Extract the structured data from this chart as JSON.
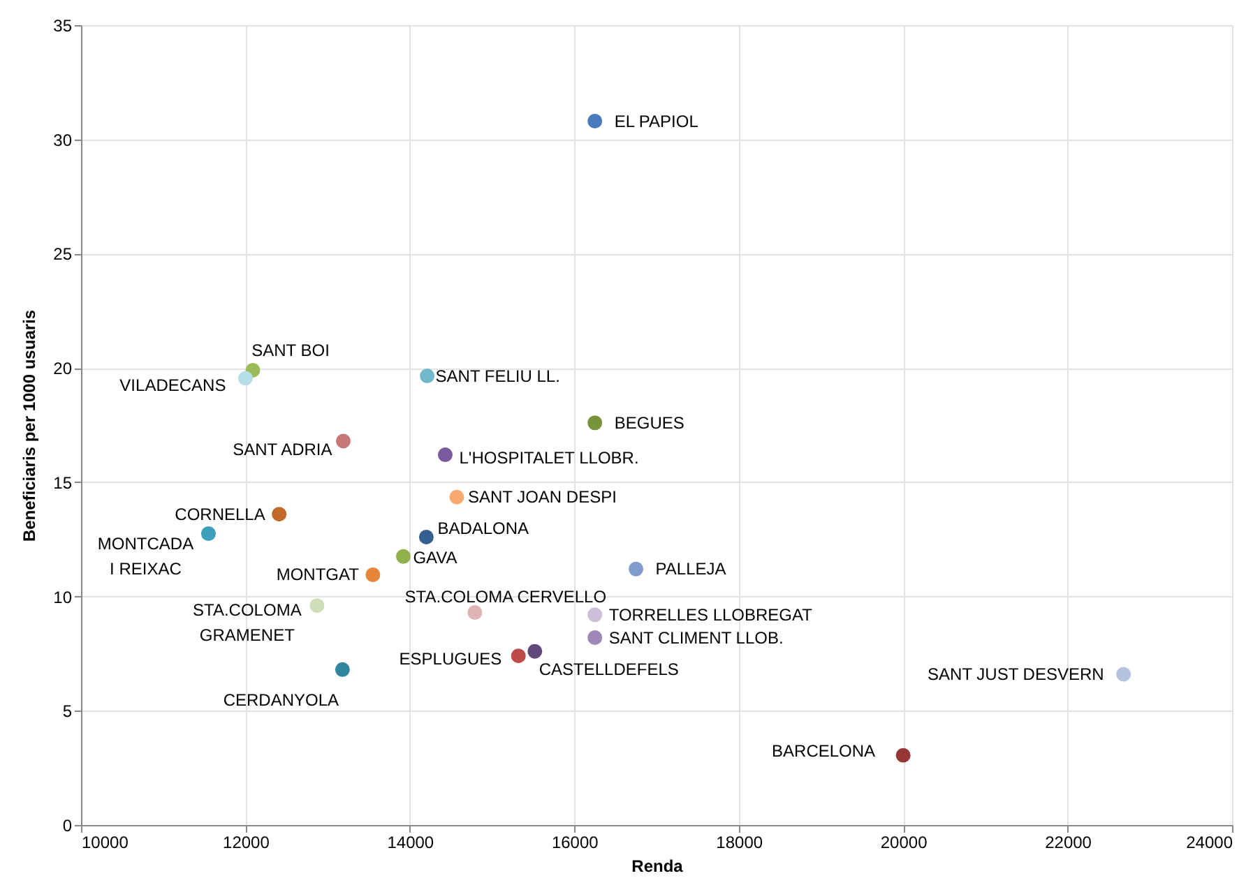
{
  "chart_data": {
    "type": "scatter",
    "xlabel": "Renda",
    "ylabel": "Beneficiaris per 1000 usuaris",
    "xlim": [
      10000,
      24000
    ],
    "xticks": [
      10000,
      12000,
      14000,
      16000,
      18000,
      20000,
      22000,
      24000
    ],
    "ylim": [
      0,
      35
    ],
    "yticks": [
      0,
      5,
      10,
      15,
      20,
      25,
      30,
      35
    ],
    "grid": true,
    "marker": "circle",
    "series": [
      {
        "name": "EL PAPIOL",
        "color": "#4a7bbd",
        "x": [
          16250
        ],
        "values": [
          30.8
        ]
      },
      {
        "name": "SANT BOI",
        "color": "#9bbb59",
        "x": [
          12090
        ],
        "values": [
          19.9
        ]
      },
      {
        "name": "VILADECANS",
        "color": "#b7dde8",
        "x": [
          12000
        ],
        "values": [
          19.55
        ]
      },
      {
        "name": "SANT FELIU LL.",
        "color": "#72b8cc",
        "x": [
          14210
        ],
        "values": [
          19.65
        ]
      },
      {
        "name": "BEGUES",
        "color": "#77933c",
        "x": [
          16250
        ],
        "values": [
          17.6
        ]
      },
      {
        "name": "SANT ADRIA",
        "color": "#c97878",
        "x": [
          13190
        ],
        "values": [
          16.8
        ]
      },
      {
        "name": "L'HOSPITALET LLOBR.",
        "color": "#7a5a9e",
        "x": [
          14430
        ],
        "values": [
          16.2
        ]
      },
      {
        "name": "SANT JOAN DESPI",
        "color": "#f9a870",
        "x": [
          14570
        ],
        "values": [
          14.35
        ]
      },
      {
        "name": "CORNELLA",
        "color": "#c0692a",
        "x": [
          12410
        ],
        "values": [
          13.6
        ]
      },
      {
        "name": "MONTCADA I REIXAC",
        "color": "#3ea0bd",
        "x": [
          11550
        ],
        "values": [
          12.75
        ]
      },
      {
        "name": "BADALONA",
        "color": "#365f91",
        "x": [
          14200
        ],
        "values": [
          12.6
        ]
      },
      {
        "name": "GAVA",
        "color": "#8fb04c",
        "x": [
          13920
        ],
        "values": [
          11.75
        ]
      },
      {
        "name": "MONTGAT",
        "color": "#e8853a",
        "x": [
          13550
        ],
        "values": [
          10.95
        ]
      },
      {
        "name": "PALLEJA",
        "color": "#7f9ccc",
        "x": [
          16750
        ],
        "values": [
          11.2
        ]
      },
      {
        "name": "STA.COLOMA GRAMENET",
        "color": "#d0deb8",
        "x": [
          12870
        ],
        "values": [
          9.6
        ]
      },
      {
        "name": "STA.COLOMA CERVELLO",
        "color": "#e0b4b4",
        "x": [
          14790
        ],
        "values": [
          9.3
        ]
      },
      {
        "name": "TORRELLES LLOBREGAT",
        "color": "#cbc0d8",
        "x": [
          16250
        ],
        "values": [
          9.2
        ]
      },
      {
        "name": "SANT CLIMENT LLOB.",
        "color": "#9d88b8",
        "x": [
          16250
        ],
        "values": [
          8.2
        ]
      },
      {
        "name": "ESPLUGUES",
        "color": "#be4b48",
        "x": [
          15320
        ],
        "values": [
          7.4
        ]
      },
      {
        "name": "CASTELLDEFELS",
        "color": "#5f497a",
        "x": [
          15520
        ],
        "values": [
          7.6
        ]
      },
      {
        "name": "CERDANYOLA",
        "color": "#31859c",
        "x": [
          13180
        ],
        "values": [
          6.8
        ]
      },
      {
        "name": "SANT JUST DESVERN",
        "color": "#b4c4e0",
        "x": [
          22680
        ],
        "values": [
          6.6
        ]
      },
      {
        "name": "BARCELONA",
        "color": "#953735",
        "x": [
          20000
        ],
        "values": [
          3.05
        ]
      }
    ]
  }
}
